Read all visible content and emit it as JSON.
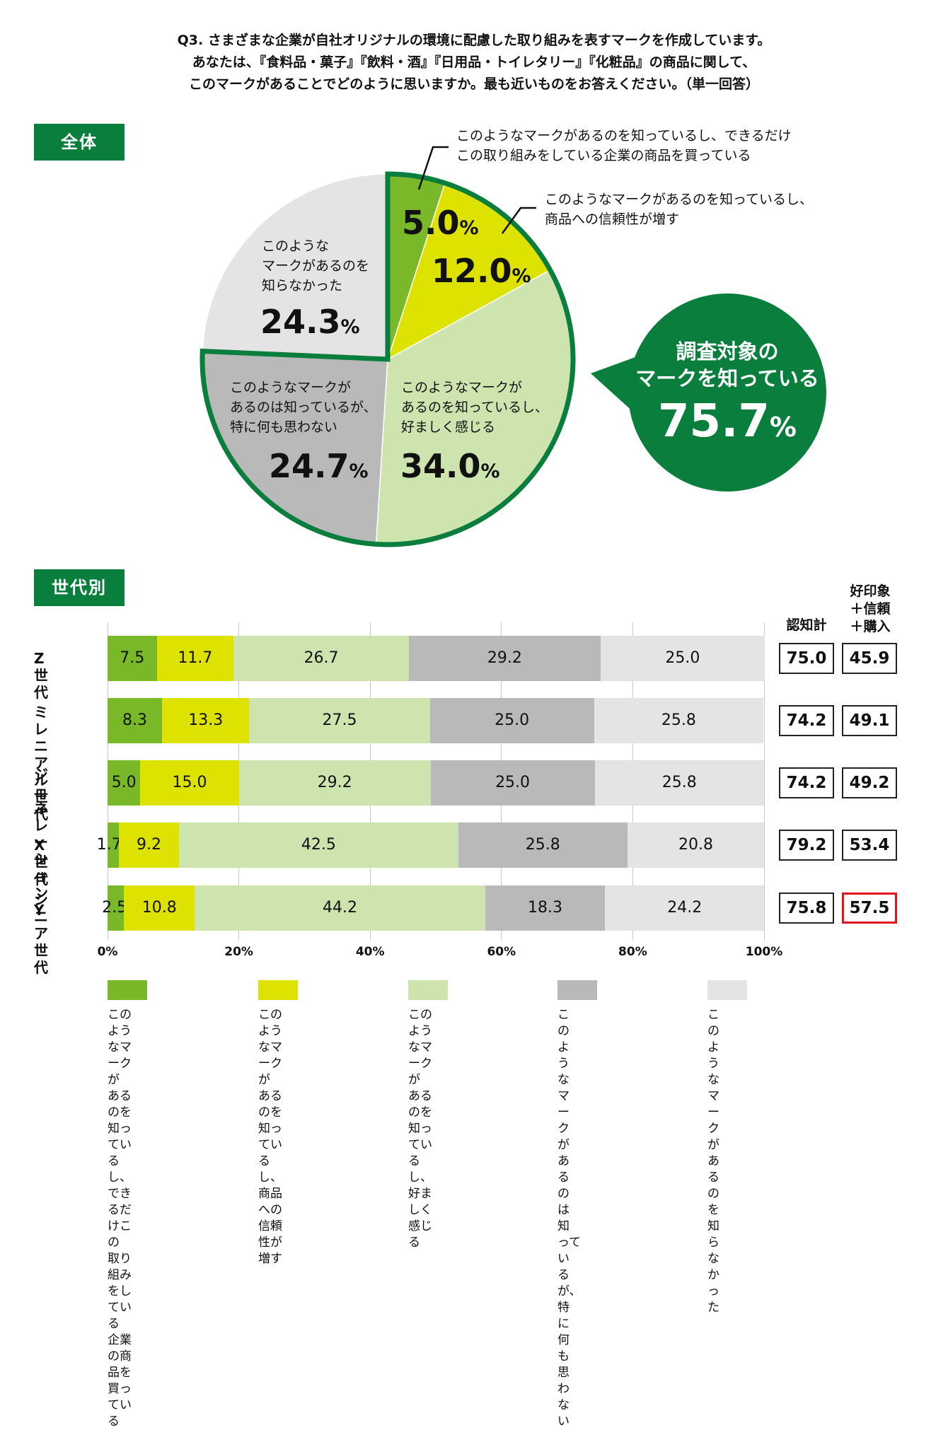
{
  "question": {
    "line1": "Q3. さまざまな企業が自社オリジナルの環境に配慮した取り組みを表すマークを作成しています。",
    "line2": "あなたは、『食料品・菓子』『飲料・酒』『日用品・トイレタリー』『化粧品』の商品に関して、",
    "line3": "このマークがあることでどのように思いますか。最も近いものをお答えください。（単一回答）"
  },
  "sections": {
    "overall": "全体",
    "by_generation": "世代別"
  },
  "colors": {
    "buy": "#79b829",
    "trust": "#dde200",
    "favorable": "#cde4ae",
    "no_thought": "#b9b9b9",
    "unaware": "#e4e4e4",
    "brand_green": "#0a7e3c",
    "highlight_red": "#e0151b"
  },
  "pie_labels": {
    "buy": "このようなマークがあるのを知っているし、できるだけ\nこの取り組みをしている企業の商品を買っている",
    "trust": "このようなマークがあるのを知っているし、\n商品への信頼性が増す",
    "favorable": "このようなマークが\nあるのを知っているし、\n好ましく感じる",
    "no_thought": "このようなマークが\nあるのは知っているが、\n特に何も思わない",
    "unaware": "このような\nマークがあるのを\n知らなかった"
  },
  "pie_values_text": {
    "buy": "5.0",
    "trust": "12.0",
    "favorable": "34.0",
    "no_thought": "24.7",
    "unaware": "24.3",
    "unit": "%"
  },
  "bubble": {
    "line1": "調査対象の",
    "line2": "マークを知っている",
    "value": "75.7",
    "unit": "%"
  },
  "table_headers": {
    "awareness": "認知計",
    "positive": "好印象\n＋信頼\n＋購入"
  },
  "legend": [
    {
      "key": "buy",
      "text": "このようなマークが\nあるのを知っているし、\nできるだけこの\n取り組みをしている\n企業の商品を買っている"
    },
    {
      "key": "trust",
      "text": "このようなマークが\nあるのを知っているし、\n商品への信頼性が増す"
    },
    {
      "key": "favorable",
      "text": "このようなマークが\nあるのを知っているし、\n好ましく感じる"
    },
    {
      "key": "no_thought",
      "text": "このようなマークが\nあるのは知っているが、\n特に何も思わない"
    },
    {
      "key": "unaware",
      "text": "このようなマークが\nあるのを知らなかった"
    }
  ],
  "chart_data": [
    {
      "type": "pie",
      "title": "全体",
      "categories": [
        "buy",
        "trust",
        "favorable",
        "no_thought",
        "unaware"
      ],
      "values": [
        5.0,
        12.0,
        34.0,
        24.7,
        24.3
      ],
      "highlight_group_total": 75.7
    },
    {
      "type": "bar",
      "orientation": "horizontal",
      "stacked": true,
      "title": "世代別",
      "categories": [
        "Z世代",
        "ミレニアル\n世代",
        "ジェネレー\nションY",
        "X世代",
        "シニア\n世代"
      ],
      "xlim": [
        0,
        100
      ],
      "xticks": [
        "0%",
        "20%",
        "40%",
        "60%",
        "80%",
        "100%"
      ],
      "grid": true,
      "series": [
        {
          "key": "buy",
          "values": [
            7.5,
            8.3,
            5.0,
            1.7,
            2.5
          ]
        },
        {
          "key": "trust",
          "values": [
            11.7,
            13.3,
            15.0,
            9.2,
            10.8
          ]
        },
        {
          "key": "favorable",
          "values": [
            26.7,
            27.5,
            29.2,
            42.5,
            44.2
          ]
        },
        {
          "key": "no_thought",
          "values": [
            29.2,
            25.0,
            25.0,
            25.8,
            18.3
          ]
        },
        {
          "key": "unaware",
          "values": [
            25.0,
            25.8,
            25.8,
            20.8,
            24.2
          ]
        }
      ],
      "awareness_total": [
        75.0,
        74.2,
        74.2,
        79.2,
        75.8
      ],
      "positive_total": [
        45.9,
        49.1,
        49.2,
        53.4,
        57.5
      ],
      "highlight_positive_index": 4
    }
  ]
}
